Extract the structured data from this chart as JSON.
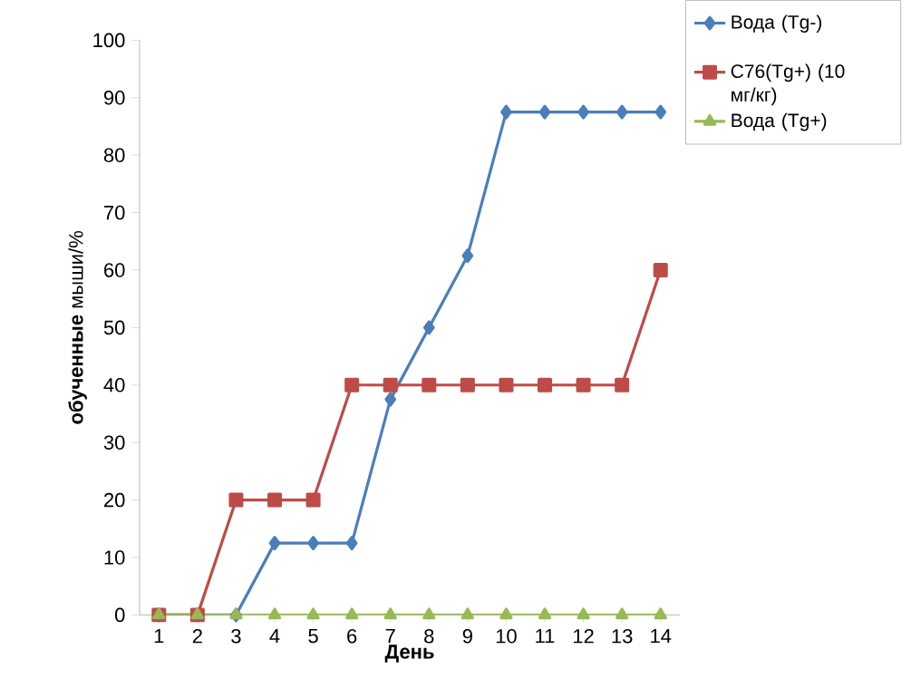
{
  "chart_data": {
    "type": "line",
    "xlabel": "**День**",
    "ylabel": "**обученные** мыши/%",
    "categories": [
      "1",
      "2",
      "3",
      "4",
      "5",
      "6",
      "7",
      "8",
      "9",
      "10",
      "11",
      "12",
      "13",
      "14"
    ],
    "ylim": [
      0,
      100
    ],
    "yticks": [
      0,
      10,
      20,
      30,
      40,
      50,
      60,
      70,
      80,
      90,
      100
    ],
    "grid": false,
    "legend": "top right",
    "series": [
      {
        "name": "Вода (Tg-)",
        "color": "#4a7ebb",
        "marker": "diamond",
        "values": [
          0,
          0,
          0,
          12.5,
          12.5,
          12.5,
          37.5,
          50,
          62.5,
          87.5,
          87.5,
          87.5,
          87.5,
          87.5
        ]
      },
      {
        "name": "C76(Tg+) (10 мг/кг)",
        "color": "#be4b48",
        "marker": "square",
        "values": [
          0,
          0,
          20,
          20,
          20,
          40,
          40,
          40,
          40,
          40,
          40,
          40,
          40,
          60
        ]
      },
      {
        "name": "Вода (Tg+)",
        "color": "#98b954",
        "marker": "triangle",
        "values": [
          0,
          0,
          0,
          0,
          0,
          0,
          0,
          0,
          0,
          0,
          0,
          0,
          0,
          0
        ]
      }
    ]
  }
}
